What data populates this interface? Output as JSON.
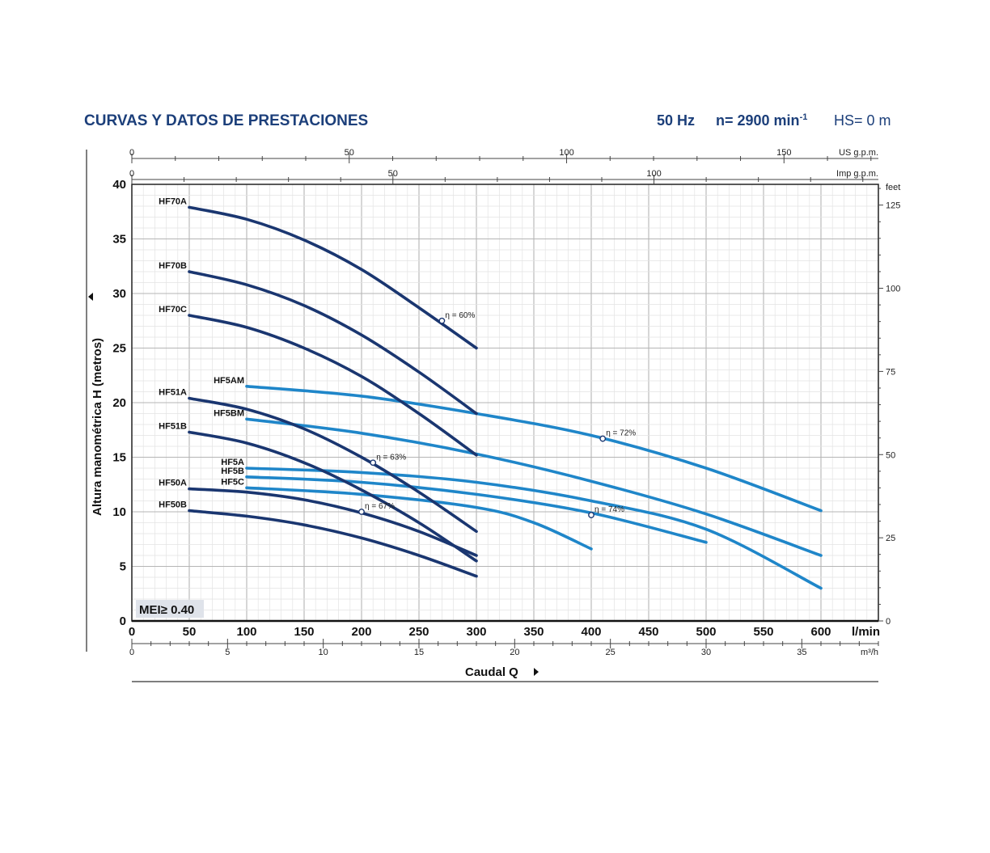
{
  "header": {
    "title": "CURVAS Y DATOS DE PRESTACIONES",
    "frequency": "50 Hz",
    "speed": "n= 2900 min",
    "speed_exp": "-1",
    "hs": "HS= 0 m"
  },
  "badge": {
    "mei": "MEI≥ 0.40"
  },
  "colors": {
    "dark_series": "#1a3670",
    "light_series": "#1f86c9",
    "title": "#1c3f7a",
    "grid": "#c8c8c8"
  },
  "chart_data": {
    "type": "line",
    "title": "CURVAS Y DATOS DE PRESTACIONES",
    "xlabel": "Caudal Q",
    "ylabel": "Altura manométrica H (metros)",
    "xlim": [
      0,
      650
    ],
    "ylim": [
      0,
      40
    ],
    "grid": true,
    "x_unit": "l/min",
    "x_ticks": [
      0,
      50,
      100,
      150,
      200,
      250,
      300,
      350,
      400,
      450,
      500,
      550,
      600
    ],
    "y_ticks": [
      0,
      5,
      10,
      15,
      20,
      25,
      30,
      35,
      40
    ],
    "secondary_axes": {
      "top_us_gpm": {
        "unit": "US g.p.m.",
        "ticks": [
          0,
          50,
          100,
          150
        ]
      },
      "top_imp_gpm": {
        "unit": "Imp g.p.m.",
        "ticks": [
          0,
          50,
          100
        ]
      },
      "bottom_m3h": {
        "unit": "m³/h",
        "ticks": [
          0,
          5,
          10,
          15,
          20,
          25,
          30,
          35
        ]
      },
      "right_feet": {
        "unit": "feet",
        "ticks": [
          0,
          25,
          50,
          75,
          100,
          125
        ]
      }
    },
    "series": [
      {
        "name": "HF70A",
        "group": "dark",
        "points": [
          [
            50,
            37.9
          ],
          [
            100,
            36.8
          ],
          [
            150,
            34.9
          ],
          [
            200,
            32.2
          ],
          [
            250,
            28.7
          ],
          [
            300,
            25.0
          ]
        ]
      },
      {
        "name": "HF70B",
        "group": "dark",
        "points": [
          [
            50,
            32.0
          ],
          [
            100,
            30.8
          ],
          [
            150,
            28.9
          ],
          [
            200,
            26.2
          ],
          [
            250,
            22.8
          ],
          [
            300,
            19.0
          ]
        ]
      },
      {
        "name": "HF70C",
        "group": "dark",
        "points": [
          [
            50,
            28.0
          ],
          [
            100,
            26.9
          ],
          [
            150,
            25.0
          ],
          [
            200,
            22.4
          ],
          [
            250,
            19.0
          ],
          [
            300,
            15.2
          ]
        ]
      },
      {
        "name": "HF51A",
        "group": "dark",
        "points": [
          [
            50,
            20.4
          ],
          [
            100,
            19.4
          ],
          [
            150,
            17.6
          ],
          [
            200,
            15.0
          ],
          [
            250,
            11.8
          ],
          [
            300,
            8.2
          ]
        ]
      },
      {
        "name": "HF51B",
        "group": "dark",
        "points": [
          [
            50,
            17.3
          ],
          [
            100,
            16.3
          ],
          [
            150,
            14.5
          ],
          [
            200,
            12.0
          ],
          [
            250,
            9.0
          ],
          [
            300,
            5.5
          ]
        ]
      },
      {
        "name": "HF50A",
        "group": "dark",
        "points": [
          [
            50,
            12.1
          ],
          [
            100,
            11.8
          ],
          [
            150,
            11.1
          ],
          [
            200,
            9.9
          ],
          [
            250,
            8.2
          ],
          [
            300,
            6.0
          ]
        ]
      },
      {
        "name": "HF50B",
        "group": "dark",
        "points": [
          [
            50,
            10.1
          ],
          [
            100,
            9.6
          ],
          [
            150,
            8.8
          ],
          [
            200,
            7.6
          ],
          [
            250,
            6.0
          ],
          [
            300,
            4.1
          ]
        ]
      },
      {
        "name": "HF5AM",
        "group": "light",
        "points": [
          [
            100,
            21.5
          ],
          [
            200,
            20.6
          ],
          [
            300,
            19.0
          ],
          [
            400,
            17.0
          ],
          [
            500,
            14.0
          ],
          [
            600,
            10.1
          ]
        ]
      },
      {
        "name": "HF5BM",
        "group": "light",
        "points": [
          [
            100,
            18.5
          ],
          [
            200,
            17.2
          ],
          [
            300,
            15.3
          ],
          [
            400,
            12.8
          ],
          [
            500,
            9.8
          ],
          [
            600,
            6.0
          ]
        ]
      },
      {
        "name": "HF5A",
        "group": "light",
        "points": [
          [
            100,
            14.0
          ],
          [
            200,
            13.6
          ],
          [
            300,
            12.7
          ],
          [
            400,
            11.0
          ],
          [
            500,
            8.4
          ],
          [
            600,
            3.0
          ]
        ]
      },
      {
        "name": "HF5B",
        "group": "light",
        "points": [
          [
            100,
            13.2
          ],
          [
            200,
            12.7
          ],
          [
            300,
            11.6
          ],
          [
            400,
            9.9
          ],
          [
            500,
            7.2
          ]
        ]
      },
      {
        "name": "HF5C",
        "group": "light",
        "points": [
          [
            100,
            12.2
          ],
          [
            200,
            11.6
          ],
          [
            300,
            10.4
          ],
          [
            350,
            9.0
          ],
          [
            400,
            6.6
          ]
        ]
      }
    ],
    "efficiency_markers": [
      {
        "label": "η = 60%",
        "x": 270,
        "y": 27.5
      },
      {
        "label": "η = 72%",
        "x": 410,
        "y": 16.7
      },
      {
        "label": "η = 63%",
        "x": 210,
        "y": 14.5
      },
      {
        "label": "η = 74%",
        "x": 400,
        "y": 9.7
      },
      {
        "label": "η = 67%",
        "x": 200,
        "y": 10.0
      }
    ]
  }
}
